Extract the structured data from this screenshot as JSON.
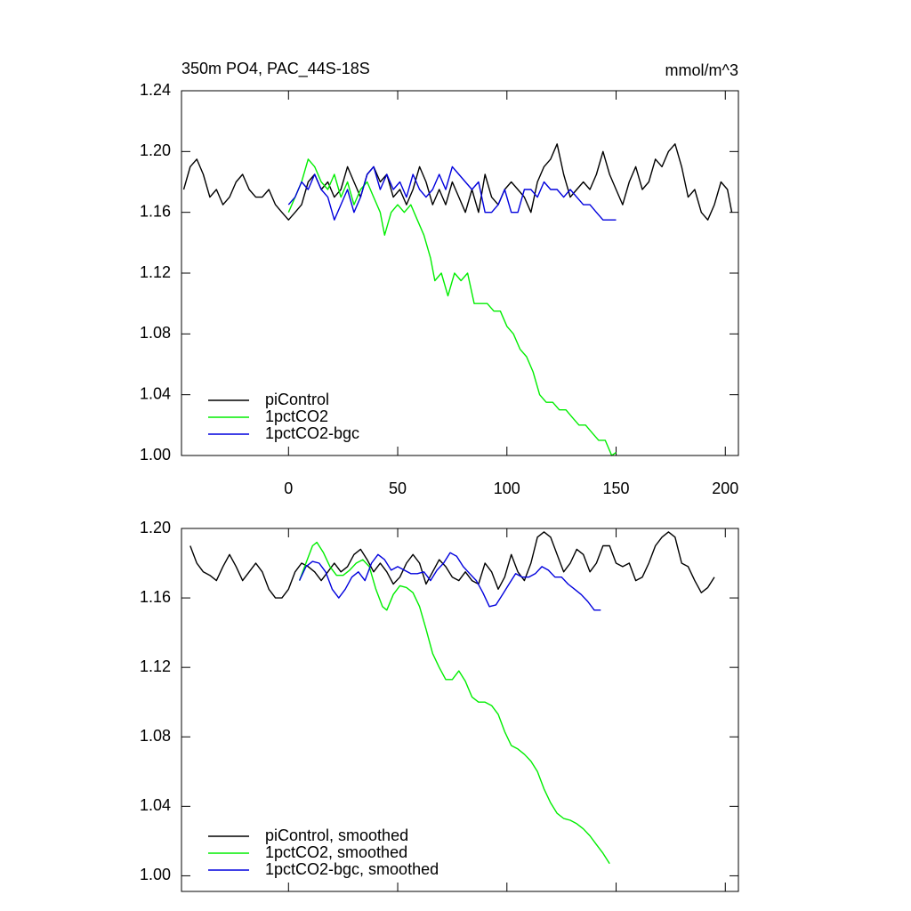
{
  "chart_data": [
    {
      "type": "line",
      "title": "350m PO4, PAC_44S-18S",
      "units": "mmol/m^3",
      "xlim": [
        -49,
        206
      ],
      "ylim": [
        1.0,
        1.24
      ],
      "xticks": [
        0,
        50,
        100,
        150,
        200
      ],
      "show_xtick_labels": true,
      "yticks": [
        {
          "value": 1.0,
          "label": "1.00"
        },
        {
          "value": 1.04,
          "label": "1.04"
        },
        {
          "value": 1.08,
          "label": "1.08"
        },
        {
          "value": 1.12,
          "label": "1.12"
        },
        {
          "value": 1.16,
          "label": "1.16"
        },
        {
          "value": 1.2,
          "label": "1.20"
        },
        {
          "value": 1.24,
          "label": "1.24"
        }
      ],
      "legend": "lower left",
      "series": [
        {
          "name": "piControl",
          "color": "#000000",
          "x": [
            -48,
            -45,
            -42,
            -39,
            -36,
            -33,
            -30,
            -27,
            -24,
            -21,
            -18,
            -15,
            -12,
            -9,
            -6,
            -3,
            0,
            3,
            6,
            9,
            12,
            15,
            18,
            21,
            24,
            27,
            30,
            33,
            36,
            39,
            42,
            45,
            48,
            51,
            54,
            57,
            60,
            63,
            66,
            69,
            72,
            75,
            78,
            81,
            84,
            87,
            90,
            93,
            96,
            99,
            102,
            105,
            108,
            111,
            114,
            117,
            120,
            123,
            126,
            129,
            132,
            135,
            138,
            141,
            144,
            147,
            150,
            153,
            156,
            159,
            162,
            165,
            168,
            171,
            174,
            177,
            180,
            183,
            186,
            189,
            192,
            195,
            198,
            201,
            203
          ],
          "values": [
            1.175,
            1.19,
            1.195,
            1.185,
            1.17,
            1.175,
            1.165,
            1.17,
            1.18,
            1.185,
            1.175,
            1.17,
            1.17,
            1.175,
            1.165,
            1.16,
            1.155,
            1.16,
            1.165,
            1.18,
            1.185,
            1.175,
            1.18,
            1.17,
            1.175,
            1.19,
            1.18,
            1.17,
            1.185,
            1.19,
            1.18,
            1.185,
            1.17,
            1.175,
            1.165,
            1.175,
            1.19,
            1.18,
            1.165,
            1.175,
            1.165,
            1.18,
            1.17,
            1.16,
            1.175,
            1.16,
            1.185,
            1.17,
            1.165,
            1.175,
            1.18,
            1.175,
            1.17,
            1.16,
            1.18,
            1.19,
            1.195,
            1.205,
            1.185,
            1.17,
            1.175,
            1.18,
            1.175,
            1.185,
            1.2,
            1.185,
            1.175,
            1.165,
            1.18,
            1.19,
            1.175,
            1.18,
            1.195,
            1.19,
            1.2,
            1.205,
            1.19,
            1.17,
            1.175,
            1.16,
            1.155,
            1.165,
            1.18,
            1.175,
            1.16
          ]
        },
        {
          "name": "1pctCO2",
          "color": "#00ee00",
          "x": [
            0,
            3,
            6,
            9,
            12,
            15,
            18,
            21,
            24,
            27,
            30,
            33,
            36,
            39,
            42,
            44,
            47,
            50,
            53,
            56,
            59,
            62,
            65,
            67,
            70,
            73,
            76,
            79,
            82,
            85,
            88,
            91,
            94,
            97,
            100,
            103,
            106,
            109,
            112,
            115,
            118,
            121,
            124,
            127,
            130,
            133,
            136,
            139,
            142,
            145,
            148,
            150
          ],
          "values": [
            1.16,
            1.17,
            1.18,
            1.195,
            1.19,
            1.18,
            1.175,
            1.185,
            1.17,
            1.18,
            1.165,
            1.175,
            1.18,
            1.17,
            1.16,
            1.145,
            1.16,
            1.165,
            1.16,
            1.165,
            1.155,
            1.145,
            1.13,
            1.115,
            1.12,
            1.105,
            1.12,
            1.115,
            1.12,
            1.1,
            1.1,
            1.1,
            1.095,
            1.095,
            1.085,
            1.08,
            1.07,
            1.065,
            1.055,
            1.04,
            1.035,
            1.035,
            1.03,
            1.03,
            1.025,
            1.02,
            1.02,
            1.015,
            1.01,
            1.01,
            1.0,
            1.002
          ]
        },
        {
          "name": "1pctCO2-bgc",
          "color": "#0000dd",
          "x": [
            0,
            3,
            6,
            9,
            12,
            15,
            18,
            21,
            24,
            27,
            30,
            33,
            36,
            39,
            42,
            45,
            48,
            51,
            54,
            57,
            60,
            63,
            66,
            69,
            72,
            75,
            78,
            81,
            84,
            87,
            90,
            93,
            96,
            99,
            102,
            105,
            108,
            111,
            114,
            117,
            120,
            123,
            126,
            129,
            132,
            135,
            138,
            141,
            144,
            147,
            150
          ],
          "values": [
            1.165,
            1.17,
            1.18,
            1.175,
            1.185,
            1.175,
            1.17,
            1.155,
            1.165,
            1.175,
            1.16,
            1.17,
            1.185,
            1.19,
            1.175,
            1.185,
            1.175,
            1.18,
            1.17,
            1.185,
            1.175,
            1.17,
            1.175,
            1.185,
            1.175,
            1.19,
            1.185,
            1.18,
            1.175,
            1.18,
            1.16,
            1.16,
            1.165,
            1.175,
            1.16,
            1.16,
            1.175,
            1.175,
            1.17,
            1.18,
            1.175,
            1.175,
            1.17,
            1.175,
            1.17,
            1.165,
            1.165,
            1.16,
            1.155,
            1.155,
            1.155
          ]
        }
      ]
    },
    {
      "type": "line",
      "xlim": [
        -49,
        206
      ],
      "ylim": [
        0.991,
        1.2
      ],
      "xticks": [
        0,
        50,
        100,
        150,
        200
      ],
      "show_xtick_labels": false,
      "yticks": [
        {
          "value": 1.0,
          "label": "1.00"
        },
        {
          "value": 1.04,
          "label": "1.04"
        },
        {
          "value": 1.08,
          "label": "1.08"
        },
        {
          "value": 1.12,
          "label": "1.12"
        },
        {
          "value": 1.16,
          "label": "1.16"
        },
        {
          "value": 1.2,
          "label": "1.20"
        }
      ],
      "legend": "lower left",
      "series": [
        {
          "name": "piControl, smoothed",
          "color": "#000000",
          "x": [
            -45,
            -42,
            -39,
            -36,
            -33,
            -30,
            -27,
            -24,
            -21,
            -18,
            -15,
            -12,
            -9,
            -6,
            -3,
            0,
            3,
            6,
            9,
            12,
            15,
            18,
            21,
            24,
            27,
            30,
            33,
            36,
            39,
            42,
            45,
            48,
            51,
            54,
            57,
            60,
            63,
            66,
            69,
            72,
            75,
            78,
            81,
            84,
            87,
            90,
            93,
            96,
            99,
            102,
            105,
            108,
            111,
            114,
            117,
            120,
            123,
            126,
            129,
            132,
            135,
            138,
            141,
            144,
            147,
            150,
            153,
            156,
            159,
            162,
            165,
            168,
            171,
            174,
            177,
            180,
            183,
            186,
            189,
            192,
            195
          ],
          "values": [
            1.19,
            1.18,
            1.175,
            1.173,
            1.17,
            1.178,
            1.185,
            1.178,
            1.17,
            1.175,
            1.18,
            1.175,
            1.165,
            1.16,
            1.16,
            1.165,
            1.175,
            1.18,
            1.178,
            1.175,
            1.17,
            1.175,
            1.18,
            1.175,
            1.178,
            1.185,
            1.188,
            1.182,
            1.175,
            1.18,
            1.175,
            1.168,
            1.172,
            1.18,
            1.185,
            1.18,
            1.168,
            1.175,
            1.182,
            1.178,
            1.172,
            1.17,
            1.175,
            1.17,
            1.168,
            1.18,
            1.175,
            1.165,
            1.172,
            1.185,
            1.175,
            1.17,
            1.18,
            1.195,
            1.198,
            1.195,
            1.185,
            1.175,
            1.18,
            1.188,
            1.185,
            1.175,
            1.18,
            1.19,
            1.19,
            1.18,
            1.178,
            1.18,
            1.17,
            1.172,
            1.18,
            1.19,
            1.195,
            1.198,
            1.195,
            1.18,
            1.178,
            1.17,
            1.163,
            1.166,
            1.172
          ]
        },
        {
          "name": "1pctCO2, smoothed",
          "color": "#00ee00",
          "x": [
            5,
            8,
            11,
            13,
            16,
            19,
            22,
            25,
            28,
            31,
            34,
            37,
            40,
            43,
            45,
            48,
            51,
            54,
            57,
            60,
            63,
            66,
            69,
            72,
            75,
            78,
            81,
            84,
            87,
            90,
            93,
            96,
            99,
            102,
            105,
            108,
            111,
            114,
            117,
            120,
            123,
            126,
            129,
            132,
            135,
            138,
            141,
            144,
            147
          ],
          "values": [
            1.17,
            1.18,
            1.19,
            1.192,
            1.186,
            1.178,
            1.173,
            1.173,
            1.176,
            1.18,
            1.182,
            1.178,
            1.165,
            1.155,
            1.153,
            1.162,
            1.167,
            1.166,
            1.163,
            1.155,
            1.142,
            1.128,
            1.12,
            1.113,
            1.113,
            1.118,
            1.112,
            1.103,
            1.1,
            1.1,
            1.098,
            1.093,
            1.083,
            1.075,
            1.073,
            1.07,
            1.066,
            1.06,
            1.05,
            1.042,
            1.036,
            1.033,
            1.032,
            1.03,
            1.027,
            1.023,
            1.018,
            1.013,
            1.007
          ]
        },
        {
          "name": "1pctCO2-bgc, smoothed",
          "color": "#0000dd",
          "x": [
            5,
            8,
            11,
            14,
            17,
            20,
            23,
            26,
            29,
            32,
            35,
            38,
            41,
            44,
            47,
            50,
            53,
            56,
            59,
            62,
            65,
            68,
            71,
            74,
            77,
            80,
            83,
            86,
            89,
            92,
            95,
            98,
            101,
            104,
            107,
            110,
            113,
            116,
            119,
            122,
            125,
            128,
            131,
            134,
            137,
            140,
            143
          ],
          "values": [
            1.17,
            1.178,
            1.181,
            1.18,
            1.175,
            1.165,
            1.16,
            1.165,
            1.172,
            1.175,
            1.17,
            1.18,
            1.185,
            1.182,
            1.176,
            1.178,
            1.176,
            1.174,
            1.174,
            1.175,
            1.17,
            1.176,
            1.18,
            1.186,
            1.184,
            1.178,
            1.174,
            1.17,
            1.163,
            1.155,
            1.156,
            1.162,
            1.168,
            1.174,
            1.172,
            1.172,
            1.174,
            1.178,
            1.176,
            1.172,
            1.172,
            1.168,
            1.165,
            1.162,
            1.158,
            1.153,
            1.153
          ]
        }
      ]
    }
  ]
}
